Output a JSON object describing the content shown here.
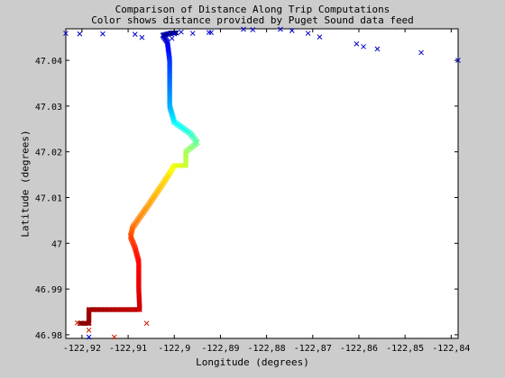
{
  "chart_data": {
    "type": "scatter",
    "title": "Comparison of Distance Along Trip Computations",
    "subtitle": "Color shows distance provided by Puget Sound data feed",
    "xlabel": "Longitude (degrees)",
    "ylabel": "Latitude (degrees)",
    "xlim": [
      -122.9235,
      -122.8385
    ],
    "ylim": [
      46.9792,
      47.0469
    ],
    "xticks": [
      -122.92,
      -122.91,
      -122.9,
      -122.89,
      -122.88,
      -122.87,
      -122.86,
      -122.85,
      -122.84
    ],
    "xtick_labels": [
      "-122,92",
      "-122,91",
      "-122,9",
      "-122,89",
      "-122,88",
      "-122,87",
      "-122,86",
      "-122,85",
      "-122,84"
    ],
    "yticks": [
      46.98,
      46.99,
      47.0,
      47.01,
      47.02,
      47.03,
      47.04
    ],
    "ytick_labels": [
      "46.98",
      "46.99",
      "47",
      "47.01",
      "47.02",
      "47.03",
      "47.04"
    ],
    "grid": false,
    "colormap": "jet",
    "track": [
      {
        "x": -122.9205,
        "y": 46.9825,
        "d": 1.0
      },
      {
        "x": -122.9195,
        "y": 46.9825,
        "d": 0.99
      },
      {
        "x": -122.9185,
        "y": 46.9825,
        "d": 0.98
      },
      {
        "x": -122.9185,
        "y": 46.9855,
        "d": 0.97
      },
      {
        "x": -122.913,
        "y": 46.9855,
        "d": 0.95
      },
      {
        "x": -122.9075,
        "y": 46.9855,
        "d": 0.93
      },
      {
        "x": -122.9077,
        "y": 46.99,
        "d": 0.9
      },
      {
        "x": -122.9077,
        "y": 46.996,
        "d": 0.87
      },
      {
        "x": -122.9085,
        "y": 46.999,
        "d": 0.84
      },
      {
        "x": -122.9095,
        "y": 47.0015,
        "d": 0.81
      },
      {
        "x": -122.909,
        "y": 47.0035,
        "d": 0.77
      },
      {
        "x": -122.9055,
        "y": 47.0085,
        "d": 0.72
      },
      {
        "x": -122.9015,
        "y": 47.0145,
        "d": 0.66
      },
      {
        "x": -122.9,
        "y": 47.017,
        "d": 0.61
      },
      {
        "x": -122.8975,
        "y": 47.017,
        "d": 0.58
      },
      {
        "x": -122.8975,
        "y": 47.02,
        "d": 0.54
      },
      {
        "x": -122.895,
        "y": 47.022,
        "d": 0.48
      },
      {
        "x": -122.8965,
        "y": 47.024,
        "d": 0.42
      },
      {
        "x": -122.9,
        "y": 47.0265,
        "d": 0.37
      },
      {
        "x": -122.901,
        "y": 47.03,
        "d": 0.3
      },
      {
        "x": -122.901,
        "y": 47.035,
        "d": 0.24
      },
      {
        "x": -122.901,
        "y": 47.04,
        "d": 0.18
      },
      {
        "x": -122.9015,
        "y": 47.044,
        "d": 0.1
      },
      {
        "x": -122.9025,
        "y": 47.0455,
        "d": 0.05
      },
      {
        "x": -122.9005,
        "y": 47.046,
        "d": 0.02
      },
      {
        "x": -122.8995,
        "y": 47.046,
        "d": 0.0
      }
    ],
    "x_markers": [
      {
        "x": -122.9235,
        "y": 47.0459
      },
      {
        "x": -122.9205,
        "y": 47.0458
      },
      {
        "x": -122.9155,
        "y": 47.0458
      },
      {
        "x": -122.9085,
        "y": 47.0457
      },
      {
        "x": -122.907,
        "y": 47.045
      },
      {
        "x": -122.9005,
        "y": 47.0448
      },
      {
        "x": -122.9,
        "y": 47.0458
      },
      {
        "x": -122.8985,
        "y": 47.0462
      },
      {
        "x": -122.896,
        "y": 47.0459
      },
      {
        "x": -122.8925,
        "y": 47.0461
      },
      {
        "x": -122.892,
        "y": 47.0461
      },
      {
        "x": -122.885,
        "y": 47.0468
      },
      {
        "x": -122.883,
        "y": 47.0467
      },
      {
        "x": -122.877,
        "y": 47.0468
      },
      {
        "x": -122.8745,
        "y": 47.0465
      },
      {
        "x": -122.871,
        "y": 47.0459
      },
      {
        "x": -122.8685,
        "y": 47.0451
      },
      {
        "x": -122.8605,
        "y": 47.0436
      },
      {
        "x": -122.859,
        "y": 47.043
      },
      {
        "x": -122.856,
        "y": 47.0425
      },
      {
        "x": -122.8465,
        "y": 47.0417
      },
      {
        "x": -122.8385,
        "y": 47.04
      }
    ],
    "red_x_markers": [
      {
        "x": -122.921,
        "y": 46.9826
      },
      {
        "x": -122.9185,
        "y": 46.981
      },
      {
        "x": -122.913,
        "y": 46.9795
      },
      {
        "x": -122.906,
        "y": 46.9825
      }
    ],
    "blue_x_markers_lower": [
      {
        "x": -122.9185,
        "y": 46.9795
      }
    ]
  }
}
